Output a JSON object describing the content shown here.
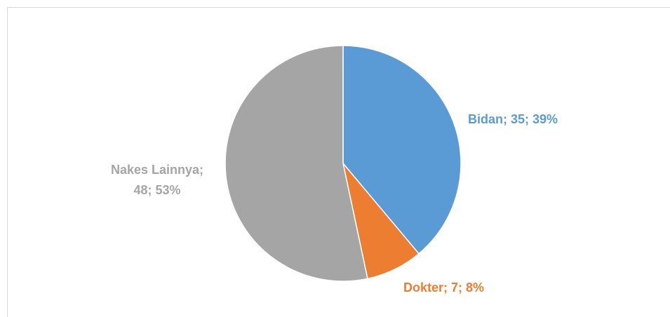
{
  "chart_data": {
    "type": "pie",
    "categories": [
      "Bidan",
      "Dokter",
      "Nakes Lainnya"
    ],
    "values": [
      35,
      7,
      48
    ],
    "value_labels": [
      "Bidan; 35; 39%",
      "Dokter; 7; 8%",
      "Nakes Lainnya; 48; 53%"
    ],
    "colors": [
      "#5b9bd5",
      "#ed7d31",
      "#a5a5a5"
    ]
  }
}
